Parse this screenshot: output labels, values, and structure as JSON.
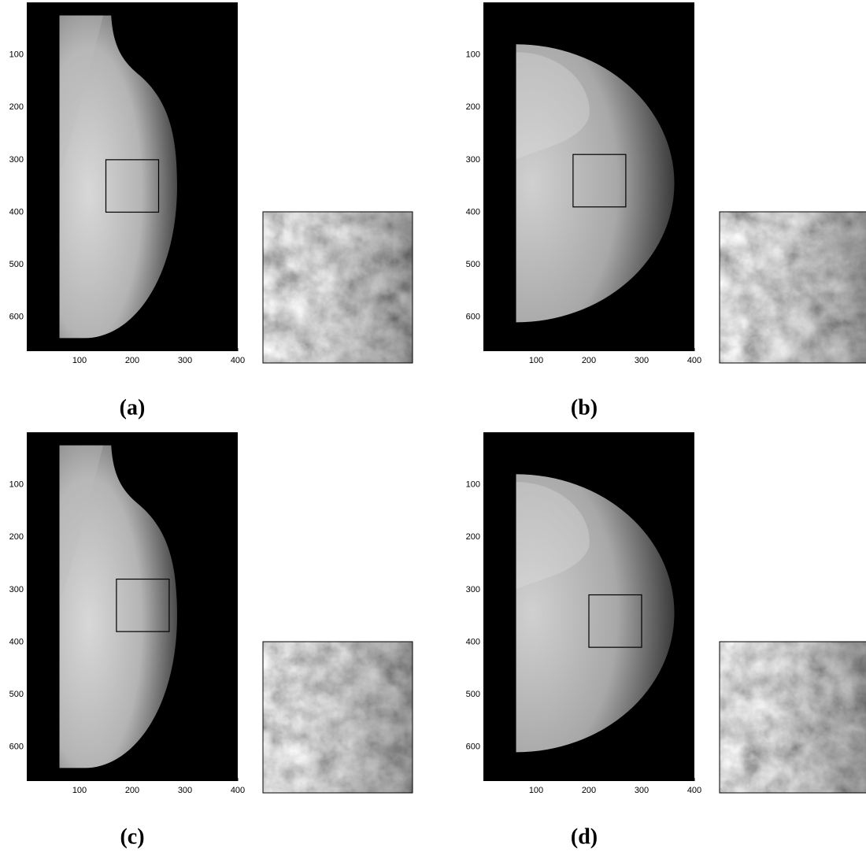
{
  "panels": [
    {
      "label": "(a)",
      "xlim": [
        0,
        400
      ],
      "ylim": [
        0,
        665
      ],
      "xticks": [
        100,
        200,
        300,
        400
      ],
      "yticks": [
        100,
        200,
        300,
        400,
        500,
        600
      ],
      "roi": {
        "x": [
          150,
          250
        ],
        "y": [
          300,
          400
        ]
      }
    },
    {
      "label": "(b)",
      "xlim": [
        0,
        400
      ],
      "ylim": [
        0,
        665
      ],
      "xticks": [
        100,
        200,
        300,
        400
      ],
      "yticks": [
        100,
        200,
        300,
        400,
        500,
        600
      ],
      "roi": {
        "x": [
          170,
          270
        ],
        "y": [
          290,
          390
        ]
      }
    },
    {
      "label": "(c)",
      "xlim": [
        0,
        400
      ],
      "ylim": [
        0,
        665
      ],
      "xticks": [
        100,
        200,
        300,
        400
      ],
      "yticks": [
        100,
        200,
        300,
        400,
        500,
        600
      ],
      "roi": {
        "x": [
          170,
          270
        ],
        "y": [
          280,
          380
        ]
      }
    },
    {
      "label": "(d)",
      "xlim": [
        0,
        400
      ],
      "ylim": [
        0,
        665
      ],
      "xticks": [
        100,
        200,
        300,
        400
      ],
      "yticks": [
        100,
        200,
        300,
        400,
        500,
        600
      ],
      "roi": {
        "x": [
          200,
          300
        ],
        "y": [
          310,
          410
        ]
      }
    }
  ]
}
